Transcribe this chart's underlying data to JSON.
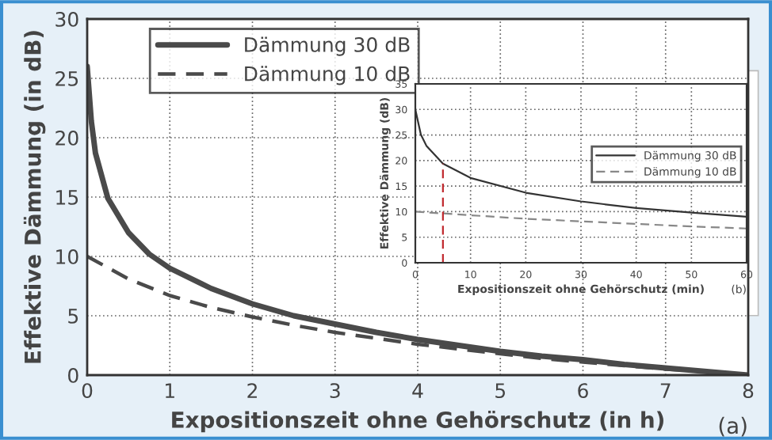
{
  "chart_data": [
    {
      "type": "line",
      "xlabel": "Expositionszeit ohne Gehörschutz (in h)",
      "ylabel": "Effektive Dämmung (in dB)",
      "xlim": [
        0,
        8
      ],
      "ylim": [
        0,
        30
      ],
      "xticks": [
        0,
        1,
        2,
        3,
        4,
        5,
        6,
        7,
        8
      ],
      "yticks": [
        0,
        5,
        10,
        15,
        20,
        25,
        30
      ],
      "grid": true,
      "legend": "top left",
      "annotations": [
        "(a)"
      ],
      "series": [
        {
          "name": "Dämmung 30 dB",
          "color": "#4a4a4a",
          "line_style": "solid",
          "x": [
            0,
            0.05,
            0.1,
            0.25,
            0.5,
            0.75,
            1,
            1.5,
            2,
            2.5,
            3,
            3.5,
            4,
            4.5,
            5,
            5.5,
            6,
            6.5,
            7,
            7.5,
            8
          ],
          "values": [
            26,
            21.4,
            18.7,
            14.9,
            12.0,
            10.2,
            9.0,
            7.3,
            6.0,
            5.0,
            4.3,
            3.6,
            3.0,
            2.5,
            2.0,
            1.6,
            1.3,
            0.9,
            0.6,
            0.3,
            0
          ]
        },
        {
          "name": "Dämmung 10 dB",
          "color": "#4a4a4a",
          "line_style": "dashed",
          "x": [
            0,
            0.5,
            1,
            1.5,
            2,
            2.5,
            3,
            3.5,
            4,
            4.5,
            5,
            5.5,
            6,
            6.5,
            7,
            7.5,
            8
          ],
          "values": [
            10,
            8.1,
            6.7,
            5.7,
            4.9,
            4.2,
            3.6,
            3.1,
            2.6,
            2.2,
            1.8,
            1.4,
            1.1,
            0.8,
            0.5,
            0.3,
            0
          ]
        }
      ]
    },
    {
      "type": "line",
      "xlabel": "Expositionszeit ohne Gehörschutz (min)",
      "ylabel": "Effektive Dämmung (dB)",
      "xlim": [
        0,
        60
      ],
      "ylim": [
        0,
        35
      ],
      "xticks": [
        0,
        10,
        20,
        30,
        40,
        50,
        60
      ],
      "yticks": [
        0,
        5,
        10,
        15,
        20,
        25,
        30,
        35
      ],
      "grid": true,
      "legend": "right",
      "annotations": [
        "(b)"
      ],
      "ref_lines": [
        {
          "axis": "x",
          "value": 5,
          "color": "#c0282d",
          "line_style": "dashed"
        }
      ],
      "series": [
        {
          "name": "Dämmung 30 dB",
          "color": "#333333",
          "line_style": "solid",
          "x": [
            0,
            1,
            2,
            5,
            10,
            20,
            30,
            40,
            50,
            60
          ],
          "values": [
            30,
            25.1,
            22.9,
            19.4,
            16.6,
            13.7,
            12.0,
            10.7,
            9.8,
            9.0
          ]
        },
        {
          "name": "Dämmung 10 dB",
          "color": "#888888",
          "line_style": "dashed",
          "x": [
            0,
            10,
            20,
            30,
            40,
            50,
            60
          ],
          "values": [
            10,
            9.3,
            8.6,
            8.1,
            7.6,
            7.1,
            6.7
          ]
        }
      ]
    }
  ]
}
